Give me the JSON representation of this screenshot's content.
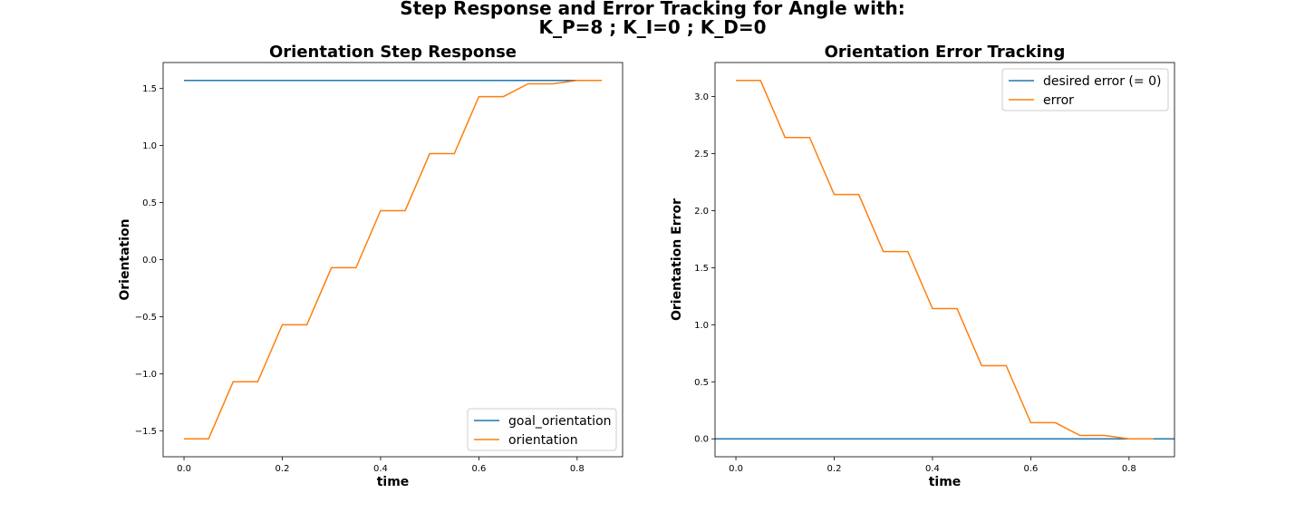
{
  "figure": {
    "title_line1": "Step Response and Error Tracking for Angle with:",
    "title_line2": "K_P=8 ; K_I=0 ; K_D=0"
  },
  "colors": {
    "goal": "#1f77b4",
    "actual": "#ff7f0e"
  },
  "chart_data": [
    {
      "type": "line",
      "title": "Orientation Step Response",
      "xlabel": "time",
      "ylabel": "Orientation",
      "xlim": [
        -0.0425,
        0.8925
      ],
      "ylim": [
        -1.7279,
        1.7279
      ],
      "xticks": [
        0.0,
        0.2,
        0.4,
        0.6,
        0.8
      ],
      "xtick_labels": [
        "0.0",
        "0.2",
        "0.4",
        "0.6",
        "0.8"
      ],
      "yticks": [
        -1.5,
        -1.0,
        -0.5,
        0.0,
        0.5,
        1.0,
        1.5
      ],
      "ytick_labels": [
        "−1.5",
        "−1.0",
        "−0.5",
        "0.0",
        "0.5",
        "1.0",
        "1.5"
      ],
      "legend_position": "lower-right",
      "series": [
        {
          "name": "goal_orientation",
          "color": "#1f77b4",
          "x": [
            0.0,
            0.85
          ],
          "y": [
            1.5708,
            1.5708
          ]
        },
        {
          "name": "orientation",
          "color": "#ff7f0e",
          "x": [
            0.0,
            0.05,
            0.1,
            0.15,
            0.2,
            0.25,
            0.3,
            0.35,
            0.4,
            0.45,
            0.5,
            0.55,
            0.6,
            0.65,
            0.7,
            0.75,
            0.8,
            0.85
          ],
          "y": [
            -1.5708,
            -1.5708,
            -1.0708,
            -1.0708,
            -0.5708,
            -0.5708,
            -0.0708,
            -0.0708,
            0.4292,
            0.4292,
            0.9292,
            0.9292,
            1.4292,
            1.4292,
            1.5416,
            1.5416,
            1.5708,
            1.5708
          ]
        }
      ]
    },
    {
      "type": "line",
      "title": "Orientation Error Tracking",
      "xlabel": "time",
      "ylabel": "Orientation Error",
      "xlim": [
        -0.0425,
        0.8925
      ],
      "ylim": [
        -0.1571,
        3.2987
      ],
      "xticks": [
        0.0,
        0.2,
        0.4,
        0.6,
        0.8
      ],
      "xtick_labels": [
        "0.0",
        "0.2",
        "0.4",
        "0.6",
        "0.8"
      ],
      "yticks": [
        0.0,
        0.5,
        1.0,
        1.5,
        2.0,
        2.5,
        3.0
      ],
      "ytick_labels": [
        "0.0",
        "0.5",
        "1.0",
        "1.5",
        "2.0",
        "2.5",
        "3.0"
      ],
      "legend_position": "upper-right",
      "series": [
        {
          "name": "desired error (= 0)",
          "color": "#1f77b4",
          "x": [
            -0.0425,
            0.8925
          ],
          "y": [
            0.0,
            0.0
          ]
        },
        {
          "name": "error",
          "color": "#ff7f0e",
          "x": [
            0.0,
            0.05,
            0.1,
            0.15,
            0.2,
            0.25,
            0.3,
            0.35,
            0.4,
            0.45,
            0.5,
            0.55,
            0.6,
            0.65,
            0.7,
            0.75,
            0.8,
            0.85
          ],
          "y": [
            3.1416,
            3.1416,
            2.6416,
            2.6416,
            2.1416,
            2.1416,
            1.6416,
            1.6416,
            1.1416,
            1.1416,
            0.6416,
            0.6416,
            0.1416,
            0.1416,
            0.0292,
            0.0292,
            0.0,
            0.0
          ]
        }
      ]
    }
  ]
}
